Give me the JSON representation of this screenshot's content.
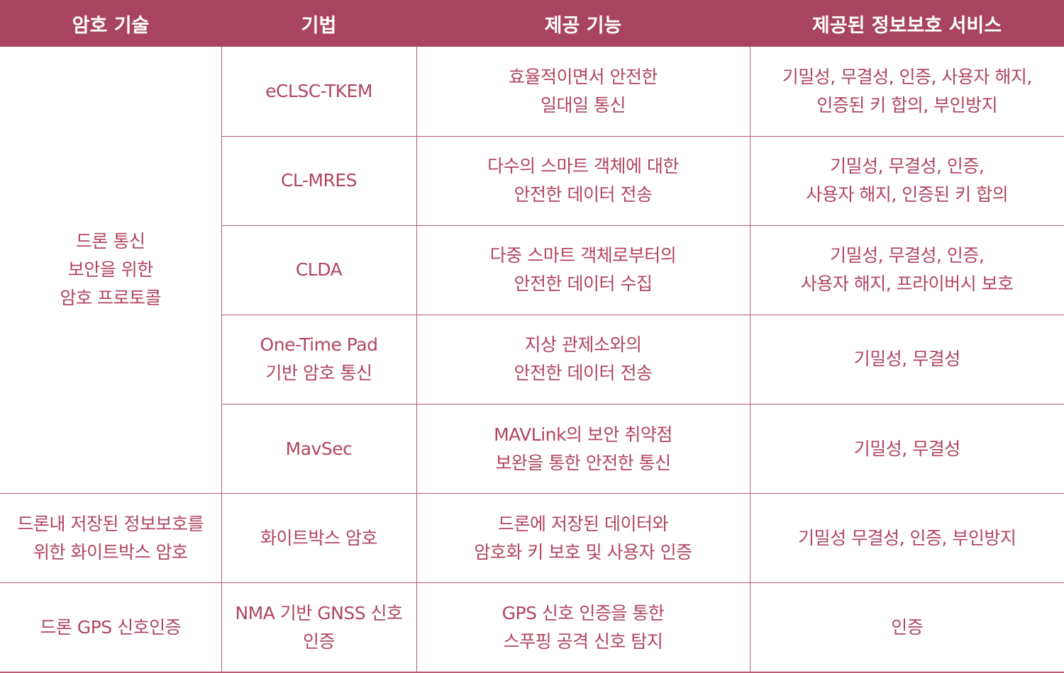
{
  "colors": {
    "header_bg": "#a8445f",
    "header_text": "#ffffff",
    "body_text": "#b14562",
    "grid_line": "#b85a72"
  },
  "headers": [
    "암호 기술",
    "기법",
    "제공 기능",
    "제공된 정보보호 서비스"
  ],
  "groups": [
    {
      "technology": "드론 통신\n보안을 위한\n암호 프로토콜",
      "rows": [
        {
          "method": "eCLSC-TKEM",
          "function": "효율적이면서 안전한\n일대일 통신",
          "services": "기밀성, 무결성, 인증, 사용자 해지,\n인증된 키 합의, 부인방지"
        },
        {
          "method": "CL-MRES",
          "function": "다수의 스마트 객체에 대한\n안전한 데이터 전송",
          "services": "기밀성, 무결성, 인증,\n사용자 해지, 인증된 키 합의"
        },
        {
          "method": "CLDA",
          "function": "다중 스마트 객체로부터의\n안전한 데이터 수집",
          "services": "기밀성, 무결성, 인증,\n사용자 해지, 프라이버시 보호"
        },
        {
          "method": "One-Time Pad\n기반 암호 통신",
          "function": "지상 관제소와의\n안전한 데이터 전송",
          "services": "기밀성, 무결성"
        },
        {
          "method": "MavSec",
          "function": "MAVLink의 보안 취약점\n보완을 통한 안전한 통신",
          "services": "기밀성, 무결성"
        }
      ]
    },
    {
      "technology": "드론내 저장된 정보보호를\n위한 화이트박스 암호",
      "rows": [
        {
          "method": "화이트박스 암호",
          "function": "드론에 저장된 데이터와\n암호화 키 보호 및 사용자 인증",
          "services": "기밀성 무결성, 인증, 부인방지"
        }
      ]
    },
    {
      "technology": "드론 GPS 신호인증",
      "rows": [
        {
          "method": "NMA 기반 GNSS 신호\n인증",
          "function": "GPS 신호 인증을 통한\n스푸핑 공격 신호 탐지",
          "services": "인증"
        }
      ]
    }
  ]
}
